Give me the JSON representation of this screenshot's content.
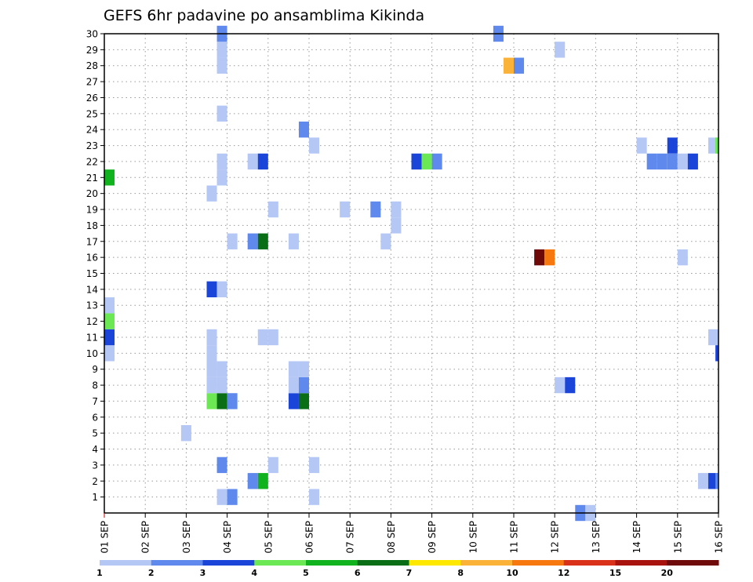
{
  "chart_data": {
    "type": "heatmap",
    "title": "GEFS 6hr padavine po ansamblima Kikinda",
    "xlabel": "",
    "ylabel": "",
    "x_tick_labels": [
      "01 SEP",
      "02 SEP",
      "03 SEP",
      "04 SEP",
      "05 SEP",
      "06 SEP",
      "07 SEP",
      "08 SEP",
      "09 SEP",
      "10 SEP",
      "11 SEP",
      "12 SEP",
      "13 SEP",
      "14 SEP",
      "15 SEP",
      "16 SEP"
    ],
    "y_tick_labels": [
      "1",
      "2",
      "3",
      "4",
      "5",
      "6",
      "7",
      "8",
      "9",
      "10",
      "11",
      "12",
      "13",
      "14",
      "15",
      "16",
      "17",
      "18",
      "19",
      "20",
      "21",
      "22",
      "23",
      "24",
      "25",
      "26",
      "27",
      "28",
      "29",
      "30"
    ],
    "xlim": [
      0,
      60
    ],
    "ylim": [
      0,
      30
    ],
    "grid": true,
    "legend_placement": "bottom",
    "colorbar": {
      "labels": [
        "1",
        "2",
        "3",
        "4",
        "5",
        "6",
        "7",
        "8",
        "10",
        "12",
        "15",
        "20"
      ],
      "colors": [
        "#b4c7f5",
        "#5f89ec",
        "#1a45d8",
        "#6be853",
        "#10b31d",
        "#0a6e16",
        "#ffe800",
        "#fbb239",
        "#f6780f",
        "#d9311a",
        "#a8130e",
        "#6e0a0a"
      ]
    },
    "cell_level_note": "values are colour levels: 1=1-2, 2=2-3, 3=3-4, 4=4-5, 5=5-6, 6=6-7, 7=7-8, 8=8-10, 9=10-12, 10=12-15, 11=15-20, 12=>20",
    "cells": [
      [
        0.5,
        10,
        1
      ],
      [
        0.5,
        11,
        3
      ],
      [
        0.5,
        12,
        4
      ],
      [
        0.5,
        13,
        1
      ],
      [
        0.5,
        21,
        5
      ],
      [
        8,
        5,
        1
      ],
      [
        10.5,
        7,
        4
      ],
      [
        10.5,
        8,
        1
      ],
      [
        10.5,
        9,
        1
      ],
      [
        10.5,
        10,
        1
      ],
      [
        10.5,
        11,
        1
      ],
      [
        10.5,
        14,
        3
      ],
      [
        10.5,
        20,
        1
      ],
      [
        11.5,
        1,
        1
      ],
      [
        11.5,
        3,
        2
      ],
      [
        11.5,
        7,
        6
      ],
      [
        11.5,
        8,
        1
      ],
      [
        11.5,
        9,
        1
      ],
      [
        11.5,
        14,
        1
      ],
      [
        11.5,
        21,
        1
      ],
      [
        11.5,
        22,
        1
      ],
      [
        11.5,
        25,
        1
      ],
      [
        11.5,
        28,
        1
      ],
      [
        11.5,
        29,
        1
      ],
      [
        11.5,
        30,
        2
      ],
      [
        12.5,
        1,
        2
      ],
      [
        12.5,
        7,
        2
      ],
      [
        12.5,
        17,
        1
      ],
      [
        14.5,
        2,
        2
      ],
      [
        14.5,
        17,
        2
      ],
      [
        14.5,
        22,
        1
      ],
      [
        15.5,
        2,
        5
      ],
      [
        15.5,
        11,
        1
      ],
      [
        15.5,
        17,
        6
      ],
      [
        15.5,
        22,
        3
      ],
      [
        16.5,
        3,
        1
      ],
      [
        16.5,
        11,
        1
      ],
      [
        16.5,
        19,
        1
      ],
      [
        18.5,
        7,
        3
      ],
      [
        18.5,
        8,
        1
      ],
      [
        18.5,
        9,
        1
      ],
      [
        18.5,
        17,
        1
      ],
      [
        19.5,
        7,
        6
      ],
      [
        19.5,
        8,
        2
      ],
      [
        19.5,
        9,
        1
      ],
      [
        19.5,
        24,
        2
      ],
      [
        20.5,
        1,
        1
      ],
      [
        20.5,
        3,
        1
      ],
      [
        20.5,
        23,
        1
      ],
      [
        23.5,
        19,
        1
      ],
      [
        26.5,
        19,
        2
      ],
      [
        27.5,
        17,
        1
      ],
      [
        28.5,
        18,
        1
      ],
      [
        28.5,
        19,
        1
      ],
      [
        30.5,
        22,
        3
      ],
      [
        31.5,
        22,
        4
      ],
      [
        32.5,
        22,
        2
      ],
      [
        38.5,
        30,
        2
      ],
      [
        39.5,
        28,
        8
      ],
      [
        40.5,
        28,
        2
      ],
      [
        42.5,
        16,
        12
      ],
      [
        43.5,
        16,
        9
      ],
      [
        44.5,
        8,
        1
      ],
      [
        44.5,
        29,
        1
      ],
      [
        45.5,
        8,
        3
      ],
      [
        46.5,
        0,
        2
      ],
      [
        47.5,
        0,
        1
      ],
      [
        52.5,
        23,
        1
      ],
      [
        53.5,
        22,
        2
      ],
      [
        54.5,
        22,
        2
      ],
      [
        55.5,
        23,
        3
      ],
      [
        55.5,
        22,
        2
      ],
      [
        56.5,
        16,
        1
      ],
      [
        56.5,
        22,
        1
      ],
      [
        57.5,
        22,
        3
      ],
      [
        58.5,
        2,
        1
      ],
      [
        59.5,
        2,
        3
      ],
      [
        59.5,
        11,
        1
      ],
      [
        59.5,
        23,
        1
      ],
      [
        60.2,
        2,
        2
      ],
      [
        60.2,
        10,
        3
      ],
      [
        60.2,
        23,
        4
      ]
    ]
  }
}
